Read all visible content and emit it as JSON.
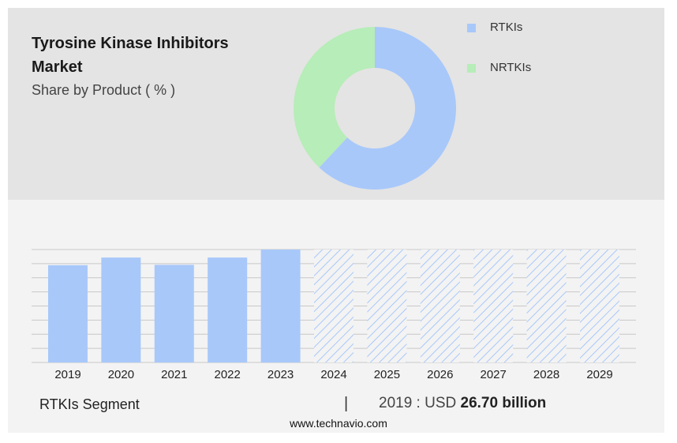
{
  "title": "Tyrosine Kinase Inhibitors Market",
  "subtitle": "Share by Product ( % )",
  "colors": {
    "rtki": "#a8c8fa",
    "nrtki": "#b7edb8",
    "forecast_hatch": "#a8c8fa",
    "gridline": "#c8c8c8"
  },
  "legend": [
    {
      "label": "RTKIs",
      "color": "#a8c8fa"
    },
    {
      "label": "NRTKIs",
      "color": "#b7edb8"
    }
  ],
  "footer": {
    "segment_label": "RTKIs Segment",
    "separator": "|",
    "year_prefix": "2019 : USD",
    "value": "26.70 billion"
  },
  "source": "www.technavio.com",
  "chart_data": [
    {
      "type": "pie",
      "style": "donut",
      "labels": [
        "RTKIs",
        "NRTKIs"
      ],
      "values": [
        62,
        38
      ],
      "colors": [
        "#a8c8fa",
        "#b7edb8"
      ]
    },
    {
      "type": "bar",
      "categories": [
        "2019",
        "2020",
        "2021",
        "2022",
        "2023",
        "2024",
        "2025",
        "2026",
        "2027",
        "2028",
        "2029"
      ],
      "values": [
        26.7,
        28.8,
        26.8,
        28.8,
        31.0,
        31.0,
        31.0,
        31.0,
        31.0,
        31.0,
        31.0
      ],
      "forecast_from": "2024",
      "forecast_style": "hatched",
      "grid": true,
      "ylim": [
        0,
        31.0
      ]
    }
  ]
}
